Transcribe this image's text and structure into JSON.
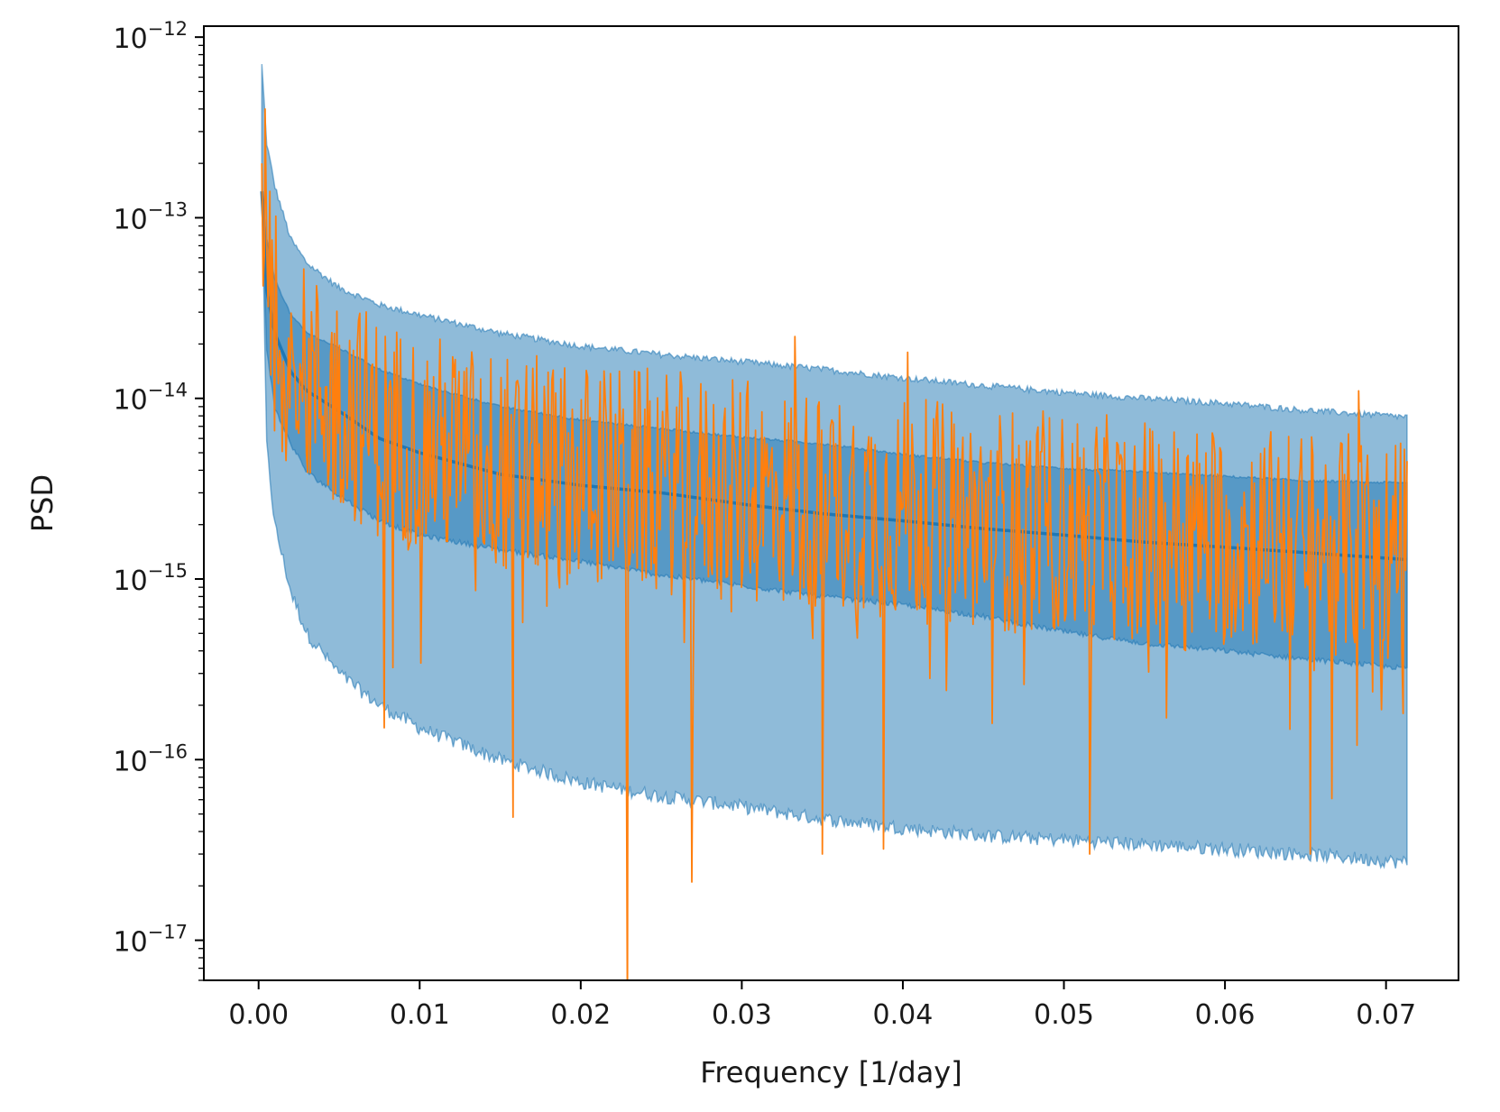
{
  "chart_data": {
    "type": "line",
    "title": "",
    "xlabel": "Frequency [1/day]",
    "ylabel": "PSD",
    "xlim": [
      -0.0034,
      0.0745
    ],
    "ylim": [
      6e-18,
      1.15e-12
    ],
    "yscale": "log",
    "grid": false,
    "legend": "none",
    "x_ticks": [
      {
        "value": 0.0,
        "label": "0.00"
      },
      {
        "value": 0.01,
        "label": "0.01"
      },
      {
        "value": 0.02,
        "label": "0.02"
      },
      {
        "value": 0.03,
        "label": "0.03"
      },
      {
        "value": 0.04,
        "label": "0.04"
      },
      {
        "value": 0.05,
        "label": "0.05"
      },
      {
        "value": 0.06,
        "label": "0.06"
      },
      {
        "value": 0.07,
        "label": "0.07"
      }
    ],
    "y_ticks": [
      {
        "value": 1e-12,
        "base": "10",
        "exp": "−12"
      },
      {
        "value": 1e-13,
        "base": "10",
        "exp": "−13"
      },
      {
        "value": 1e-14,
        "base": "10",
        "exp": "−14"
      },
      {
        "value": 1e-15,
        "base": "10",
        "exp": "−15"
      },
      {
        "value": 1e-16,
        "base": "10",
        "exp": "−16"
      },
      {
        "value": 1e-17,
        "base": "10",
        "exp": "−17"
      }
    ],
    "colors": {
      "band_fill": "#1f77b4",
      "median": "#1f77b4",
      "observed": "#ff7f0e",
      "axes": "#000000"
    },
    "model_bands": {
      "x": [
        0.0002,
        0.0005,
        0.001,
        0.002,
        0.003,
        0.005,
        0.0075,
        0.01,
        0.015,
        0.02,
        0.025,
        0.03,
        0.035,
        0.04,
        0.045,
        0.05,
        0.055,
        0.06,
        0.065,
        0.0713
      ],
      "outer_upper": [
        7e-13,
        2.6e-13,
        1.5e-13,
        7.6e-14,
        5.6e-14,
        4.1e-14,
        3.3e-14,
        2.9e-14,
        2.3e-14,
        1.95e-14,
        1.75e-14,
        1.6e-14,
        1.45e-14,
        1.3e-14,
        1.18e-14,
        1.08e-14,
        1e-14,
        9.4e-15,
        8.6e-15,
        7.9e-15
      ],
      "inner_upper": [
        1.4e-13,
        7.6e-14,
        4.6e-14,
        2.9e-14,
        2.3e-14,
        1.9e-14,
        1.45e-14,
        1.2e-14,
        9e-15,
        7.6e-15,
        6.8e-15,
        6.1e-15,
        5.6e-15,
        4.9e-15,
        4.4e-15,
        4.1e-15,
        3.9e-15,
        3.7e-15,
        3.5e-15,
        3.4e-15
      ],
      "median": [
        1.4e-13,
        4e-14,
        2.3e-14,
        1.4e-14,
        1.1e-14,
        8.5e-15,
        6e-15,
        5e-15,
        3.8e-15,
        3.3e-15,
        3e-15,
        2.6e-15,
        2.3e-15,
        2.1e-15,
        1.9e-15,
        1.75e-15,
        1.6e-15,
        1.5e-15,
        1.4e-15,
        1.28e-15
      ],
      "inner_lower": [
        1.4e-13,
        1.9e-14,
        8.8e-15,
        5.6e-15,
        3.9e-15,
        2.9e-15,
        2.1e-15,
        1.75e-15,
        1.45e-15,
        1.25e-15,
        1.05e-15,
        9.2e-16,
        8e-16,
        7.2e-16,
        6.2e-16,
        5.1e-16,
        4.4e-16,
        4e-16,
        3.6e-16,
        3.2e-16
      ],
      "outer_lower": [
        1.4e-13,
        5.5e-15,
        2e-15,
        8.5e-16,
        5e-16,
        3e-16,
        2e-16,
        1.5e-16,
        1e-16,
        7.5e-17,
        6.3e-17,
        5.5e-17,
        4.7e-17,
        4.2e-17,
        3.8e-17,
        3.6e-17,
        3.4e-17,
        3.2e-17,
        3e-17,
        2.7e-17
      ]
    },
    "observed_spikes": [
      {
        "x": 0.0002,
        "y": 2e-13
      },
      {
        "x": 0.0004,
        "y": 4e-13
      },
      {
        "x": 0.0007,
        "y": 1.4e-13
      },
      {
        "x": 0.0078,
        "y": 1.5e-16
      },
      {
        "x": 0.0158,
        "y": 4.8e-17
      },
      {
        "x": 0.0229,
        "y": 4e-18
      },
      {
        "x": 0.0269,
        "y": 2.1e-17
      },
      {
        "x": 0.035,
        "y": 3e-17
      },
      {
        "x": 0.0388,
        "y": 3.2e-17
      },
      {
        "x": 0.0516,
        "y": 3e-17
      },
      {
        "x": 0.0653,
        "y": 3e-17
      },
      {
        "x": 0.0682,
        "y": 1.2e-16
      },
      {
        "x": 0.0333,
        "y": 2.2e-14
      },
      {
        "x": 0.0403,
        "y": 1.8e-14
      },
      {
        "x": 0.0683,
        "y": 1.1e-14
      },
      {
        "x": 0.0713,
        "y": 4.5e-15
      }
    ]
  }
}
